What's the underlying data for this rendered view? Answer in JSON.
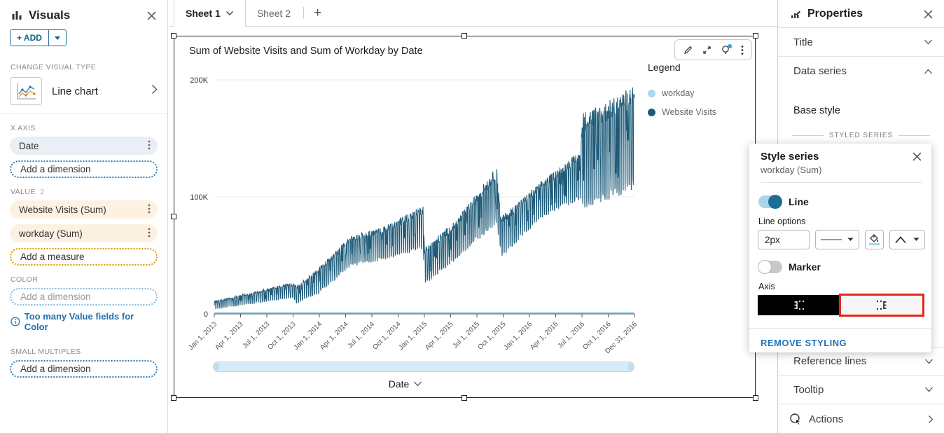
{
  "colors": {
    "accent_blue": "#1f73b7",
    "series_dark": "#1e5a78",
    "series_light": "#a5d9ee",
    "toggle_on_knob": "#1c6e96",
    "highlight_red": "#e8261c",
    "notification_dot": "#3d9fd6"
  },
  "sidebar": {
    "title": "Visuals",
    "icons": [
      "bar-chart-icon",
      "close-icon"
    ],
    "add_button_label": "+ ADD",
    "change_visual_type_label": "CHANGE VISUAL TYPE",
    "visual_type_name": "Line chart",
    "x_axis": {
      "label": "X AXIS",
      "field": "Date",
      "placeholder": "Add a dimension"
    },
    "value": {
      "label": "VALUE",
      "count": "2",
      "fields": [
        "Website Visits (Sum)",
        "workday (Sum)"
      ],
      "placeholder": "Add a measure"
    },
    "color": {
      "label": "COLOR",
      "placeholder": "Add a dimension",
      "warning": "Too many Value fields for Color"
    },
    "small_multiples": {
      "label": "SMALL MULTIPLES",
      "placeholder": "Add a dimension"
    }
  },
  "tabs": {
    "active": "Sheet 1",
    "inactive": "Sheet 2",
    "add_label": "+"
  },
  "chart": {
    "title": "Sum of Website Visits and Sum of Workday by Date",
    "legend_title": "Legend",
    "legend": [
      {
        "name": "workday",
        "color": "#a5d9ee"
      },
      {
        "name": "Website Visits",
        "color": "#1e5a78"
      }
    ],
    "x_axis_label": "Date",
    "toolbar_icons": [
      "pencil-icon",
      "maximize-icon",
      "insights-bulb-icon",
      "kebab-menu-icon"
    ]
  },
  "chart_data": {
    "type": "line",
    "title": "Sum of Website Visits and Sum of Workday by Date",
    "xlabel": "Date",
    "ylabel": "",
    "ylim_thousands": [
      0,
      200
    ],
    "y_ticks": [
      {
        "value": 0,
        "label": "0"
      },
      {
        "value": 100,
        "label": "100K"
      },
      {
        "value": 200,
        "label": "200K"
      }
    ],
    "x_tick_labels": [
      "Jan 1, 2013",
      "Apr 1, 2013",
      "Jul 1, 2013",
      "Oct 1, 2013",
      "Jan 1, 2014",
      "Apr 1, 2014",
      "Jul 1, 2014",
      "Oct 1, 2014",
      "Jan 1, 2015",
      "Apr 1, 2015",
      "Jul 1, 2015",
      "Oct 1, 2015",
      "Jan 1, 2016",
      "Apr 1, 2016",
      "Jul 1, 2016",
      "Oct 1, 2016",
      "Dec 31, 2016"
    ],
    "grid": true,
    "legend_position": "right",
    "series": [
      {
        "name": "Website Visits (Sum)",
        "color": "#1e5a78",
        "note": "daily values oscillating between weekday highs and weekend lows, sawtooth drops after Dec 2014, Sep 2015 and a jump in Jul 2016",
        "approx_values_at_ticks_thousands": [
          8,
          15,
          21,
          26,
          40,
          65,
          72,
          84,
          56,
          80,
          118,
          80,
          100,
          118,
          138,
          170,
          196
        ],
        "envelope_keyframes_years_hi_lo_thousands": [
          [
            0.0,
            11,
            4
          ],
          [
            0.75,
            27,
            13
          ],
          [
            0.79,
            24,
            8
          ],
          [
            0.86,
            30,
            12
          ],
          [
            1.0,
            40,
            17
          ],
          [
            1.3,
            67,
            40
          ],
          [
            1.6,
            74,
            45
          ],
          [
            1.99,
            93,
            55
          ],
          [
            2.0,
            57,
            24
          ],
          [
            2.3,
            80,
            45
          ],
          [
            2.69,
            126,
            76
          ],
          [
            2.73,
            83,
            47
          ],
          [
            3.1,
            112,
            80
          ],
          [
            3.49,
            140,
            97
          ],
          [
            3.5,
            172,
            87
          ],
          [
            3.75,
            182,
            95
          ],
          [
            4.0,
            196,
            103
          ]
        ]
      },
      {
        "name": "workday (Sum)",
        "color": "#a5d9ee",
        "note": "flat near zero along the x axis",
        "approx_values_at_ticks_thousands": [
          1,
          1,
          1,
          1,
          1,
          1,
          1,
          1,
          1,
          1,
          1,
          1,
          1,
          1,
          1,
          1,
          1
        ]
      }
    ]
  },
  "properties": {
    "title": "Properties",
    "rows": {
      "title": "Title",
      "data_series": "Data series"
    },
    "base_style_label": "Base style",
    "styled_series_label": "STYLED SERIES",
    "bottom_rows": {
      "reference_lines": "Reference lines",
      "tooltip": "Tooltip",
      "actions": "Actions"
    }
  },
  "style_popup": {
    "title": "Style series",
    "subtitle": "workday (Sum)",
    "line_toggle_label": "Line",
    "line_toggle_state": "on",
    "line_options_label": "Line options",
    "line_width_value": "2px",
    "marker_toggle_label": "Marker",
    "marker_toggle_state": "off",
    "axis_label": "Axis",
    "axis_selected": "right",
    "remove_styling_label": "REMOVE STYLING"
  }
}
